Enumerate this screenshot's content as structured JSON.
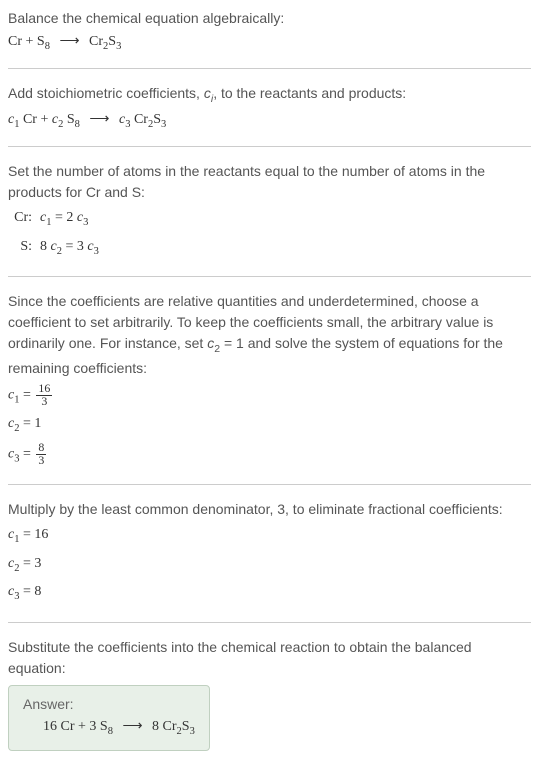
{
  "section1": {
    "title": "Balance the chemical equation algebraically:",
    "equation_lhs1": "Cr + S",
    "equation_lhs1_sub": "8",
    "arrow": "⟶",
    "equation_rhs1": "Cr",
    "equation_rhs1_sub1": "2",
    "equation_rhs1_s": "S",
    "equation_rhs1_sub2": "3"
  },
  "section2": {
    "title_part1": "Add stoichiometric coefficients, ",
    "title_ci": "c",
    "title_ci_sub": "i",
    "title_part2": ", to the reactants and products:",
    "c1": "c",
    "c1_sub": "1",
    "cr": " Cr + ",
    "c2": "c",
    "c2_sub": "2",
    "s8": " S",
    "s8_sub": "8",
    "arrow": "⟶",
    "c3": "c",
    "c3_sub": "3",
    "cr2s3_cr": " Cr",
    "cr2s3_sub1": "2",
    "cr2s3_s": "S",
    "cr2s3_sub2": "3"
  },
  "section3": {
    "title": "Set the number of atoms in the reactants equal to the number of atoms in the products for Cr and S:",
    "cr_label": "Cr:",
    "cr_eq_c1": "c",
    "cr_eq_c1_sub": "1",
    "cr_eq_mid": " = 2 ",
    "cr_eq_c3": "c",
    "cr_eq_c3_sub": "3",
    "s_label": "S:",
    "s_eq_8": "8 ",
    "s_eq_c2": "c",
    "s_eq_c2_sub": "2",
    "s_eq_mid": " = 3 ",
    "s_eq_c3": "c",
    "s_eq_c3_sub": "3"
  },
  "section4": {
    "title_part1": "Since the coefficients are relative quantities and underdetermined, choose a coefficient to set arbitrarily. To keep the coefficients small, the arbitrary value is ordinarily one. For instance, set ",
    "title_c2": "c",
    "title_c2_sub": "2",
    "title_part2": " = 1 and solve the system of equations for the remaining coefficients:",
    "c1_lhs": "c",
    "c1_lhs_sub": "1",
    "c1_eq": " = ",
    "c1_num": "16",
    "c1_den": "3",
    "c2_lhs": "c",
    "c2_lhs_sub": "2",
    "c2_val": " = 1",
    "c3_lhs": "c",
    "c3_lhs_sub": "3",
    "c3_eq": " = ",
    "c3_num": "8",
    "c3_den": "3"
  },
  "section5": {
    "title": "Multiply by the least common denominator, 3, to eliminate fractional coefficients:",
    "c1_lhs": "c",
    "c1_lhs_sub": "1",
    "c1_val": " = 16",
    "c2_lhs": "c",
    "c2_lhs_sub": "2",
    "c2_val": " = 3",
    "c3_lhs": "c",
    "c3_lhs_sub": "3",
    "c3_val": " = 8"
  },
  "section6": {
    "title": "Substitute the coefficients into the chemical reaction to obtain the balanced equation:",
    "answer_label": "Answer:",
    "answer_16cr": "16 Cr + 3 S",
    "answer_s8_sub": "8",
    "answer_arrow": "⟶",
    "answer_8": "8 Cr",
    "answer_cr_sub": "2",
    "answer_s": "S",
    "answer_s_sub": "3"
  }
}
